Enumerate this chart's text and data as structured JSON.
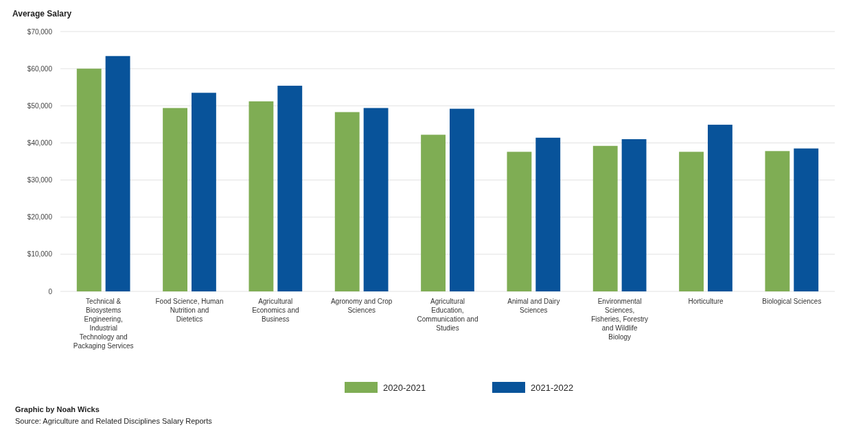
{
  "chart_data": {
    "type": "bar",
    "ylabel": "Average Salary",
    "categories": [
      "Technical & Biosystems Engineering, Industrial Technology and Packaging Services",
      "Food Science, Human Nutrition and Dietetics",
      "Agricultural Economics and Business",
      "Agronomy and Crop Sciences",
      "Agricultural Education, Communication and Studies",
      "Animal and Dairy Sciences",
      "Environmental Sciences, Fisheries, Forestry and Wildlife Biology",
      "Horticulture",
      "Biological Sciences"
    ],
    "series": [
      {
        "name": "2020-2021",
        "color": "#7fad54",
        "values": [
          60000,
          49400,
          51200,
          48300,
          42200,
          37600,
          39200,
          37600,
          37800
        ]
      },
      {
        "name": "2021-2022",
        "color": "#08539a",
        "values": [
          63400,
          53500,
          55400,
          49400,
          49200,
          41400,
          41000,
          44900,
          38500
        ]
      }
    ],
    "ylim": [
      0,
      70000
    ],
    "yticks": [
      {
        "value": 0,
        "label": "0"
      },
      {
        "value": 10000,
        "label": "$10,000"
      },
      {
        "value": 20000,
        "label": "$20,000"
      },
      {
        "value": 30000,
        "label": "$30,000"
      },
      {
        "value": 40000,
        "label": "$40,000"
      },
      {
        "value": 50000,
        "label": "$50,000"
      },
      {
        "value": 60000,
        "label": "$60,000"
      },
      {
        "value": 70000,
        "label": "$70,000"
      }
    ],
    "grid": "y",
    "legend": "bottom",
    "annotations": [
      "Graphic by Noah Wicks",
      "Source: Agriculture and Related Disciplines Salary Reports"
    ]
  }
}
